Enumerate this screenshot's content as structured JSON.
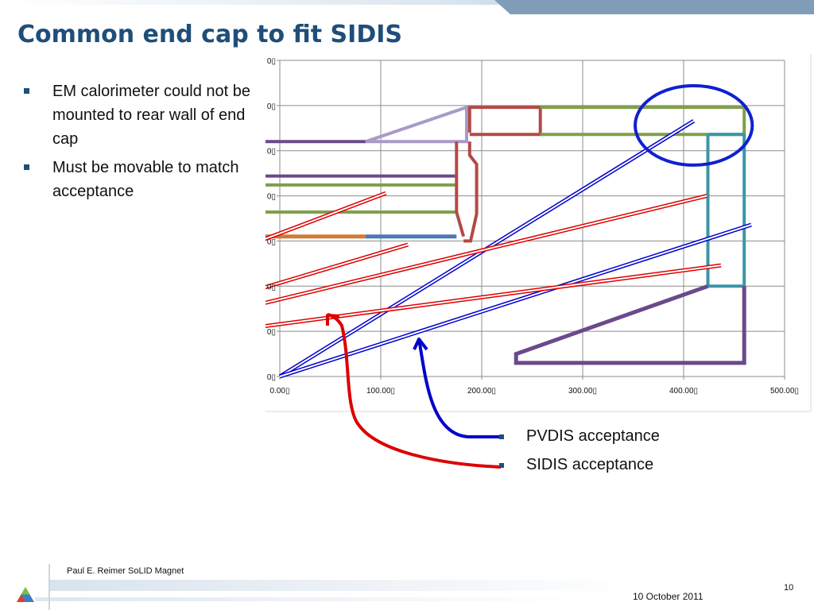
{
  "slide": {
    "title": "Common end cap to fit SIDIS",
    "bullets": [
      "EM calorimeter could not be mounted to rear wall of end cap",
      "Must be movable to match acceptance"
    ],
    "legend": [
      "PVDIS acceptance",
      "SIDIS acceptance"
    ],
    "footer_author": "Paul E. Reimer  SoLID Magnet",
    "footer_date": "10 October 2011",
    "page_number": "10"
  },
  "colors": {
    "title": "#1f4e79",
    "pvdis": "#0000cc",
    "sidis": "#dd0000",
    "green": "#7f9f4a",
    "purple": "#6a4a8a",
    "lavender": "#a89ac8",
    "brick": "#b24a46",
    "teal": "#3d95a8",
    "orange": "#d07a3a",
    "blue_bar": "#4a7ab8",
    "circle": "#1020d0"
  },
  "chart_data": {
    "type": "scatter",
    "title": "",
    "xlabel": "",
    "ylabel": "",
    "xlim": [
      0,
      500
    ],
    "ylim": [
      0,
      350
    ],
    "x_ticks": [
      "0.00",
      "100.00",
      "200.00",
      "300.00",
      "400.00",
      "500.00"
    ],
    "y_ticks": [
      "",
      "",
      "",
      "",
      "",
      "",
      "",
      ""
    ],
    "grid": true,
    "series": [
      {
        "color": "#6a4a8a",
        "width": 4,
        "points": [
          [
            -20,
            260
          ],
          [
            85,
            260
          ]
        ]
      },
      {
        "color": "#a89ac8",
        "width": 4,
        "points": [
          [
            85,
            260
          ],
          [
            185,
            298
          ],
          [
            185,
            260
          ],
          [
            85,
            260
          ]
        ]
      },
      {
        "color": "#6a4a8a",
        "width": 4,
        "points": [
          [
            -20,
            222
          ],
          [
            175,
            222
          ]
        ]
      },
      {
        "color": "#7f9f4a",
        "width": 4,
        "points": [
          [
            -20,
            212
          ],
          [
            175,
            212
          ]
        ]
      },
      {
        "color": "#7f9f4a",
        "width": 4,
        "points": [
          [
            -20,
            182
          ],
          [
            175,
            182
          ]
        ]
      },
      {
        "color": "#d07a3a",
        "width": 5,
        "points": [
          [
            -20,
            155
          ],
          [
            85,
            155
          ]
        ]
      },
      {
        "color": "#4a7ab8",
        "width": 5,
        "points": [
          [
            85,
            155
          ],
          [
            175,
            155
          ]
        ]
      },
      {
        "color": "#b24a46",
        "width": 4,
        "points": [
          [
            175,
            260
          ],
          [
            175,
            182
          ],
          [
            182,
            155
          ]
        ]
      },
      {
        "color": "#b24a46",
        "width": 4,
        "points": [
          [
            188,
            260
          ],
          [
            188,
            245
          ],
          [
            195,
            235
          ],
          [
            195,
            180
          ],
          [
            189,
            150
          ],
          [
            182,
            150
          ]
        ]
      },
      {
        "color": "#b24a46",
        "width": 4,
        "points": [
          [
            188,
            270
          ],
          [
            188,
            298
          ],
          [
            258,
            298
          ],
          [
            258,
            268
          ],
          [
            188,
            268
          ]
        ]
      },
      {
        "color": "#7f9f4a",
        "width": 4,
        "points": [
          [
            258,
            298
          ],
          [
            460,
            298
          ],
          [
            460,
            268
          ],
          [
            258,
            268
          ]
        ]
      },
      {
        "color": "#3d95a8",
        "width": 4,
        "points": [
          [
            424,
            268
          ],
          [
            460,
            268
          ],
          [
            460,
            100
          ],
          [
            424,
            100
          ],
          [
            424,
            268
          ]
        ]
      },
      {
        "color": "#6a4a8a",
        "width": 5,
        "points": [
          [
            424,
            100
          ],
          [
            234,
            25
          ],
          [
            234,
            15
          ],
          [
            460,
            15
          ],
          [
            460,
            100
          ]
        ]
      },
      {
        "name": "PVDIS acceptance",
        "color": "#0000cc",
        "width": 1.4,
        "double": true,
        "points": [
          [
            0,
            0
          ],
          [
            410,
            283
          ]
        ]
      },
      {
        "name": "PVDIS acceptance",
        "color": "#0000cc",
        "width": 1.4,
        "double": true,
        "points": [
          [
            0,
            0
          ],
          [
            467,
            168
          ]
        ]
      },
      {
        "name": "SIDIS acceptance",
        "color": "#dd0000",
        "width": 1.4,
        "double": true,
        "points": [
          [
            -20,
            150
          ],
          [
            105,
            203
          ]
        ]
      },
      {
        "name": "SIDIS acceptance",
        "color": "#dd0000",
        "width": 1.4,
        "double": true,
        "points": [
          [
            -20,
            97
          ],
          [
            127,
            146
          ]
        ]
      },
      {
        "name": "SIDIS acceptance",
        "color": "#dd0000",
        "width": 1.4,
        "double": true,
        "points": [
          [
            -20,
            80
          ],
          [
            423,
            200
          ]
        ]
      },
      {
        "name": "SIDIS acceptance",
        "color": "#dd0000",
        "width": 1.4,
        "double": true,
        "points": [
          [
            -20,
            55
          ],
          [
            437,
            123
          ]
        ]
      }
    ],
    "annotations": [
      {
        "type": "ellipse",
        "color": "#1020d0",
        "center": [
          410,
          278
        ],
        "radius": [
          58,
          44
        ]
      },
      {
        "type": "arrow",
        "color": "#0000cc",
        "to": "pvdis-line",
        "from": "legend-pvdis"
      },
      {
        "type": "arrow",
        "color": "#dd0000",
        "to": "sidis-line",
        "from": "legend-sidis"
      }
    ]
  }
}
